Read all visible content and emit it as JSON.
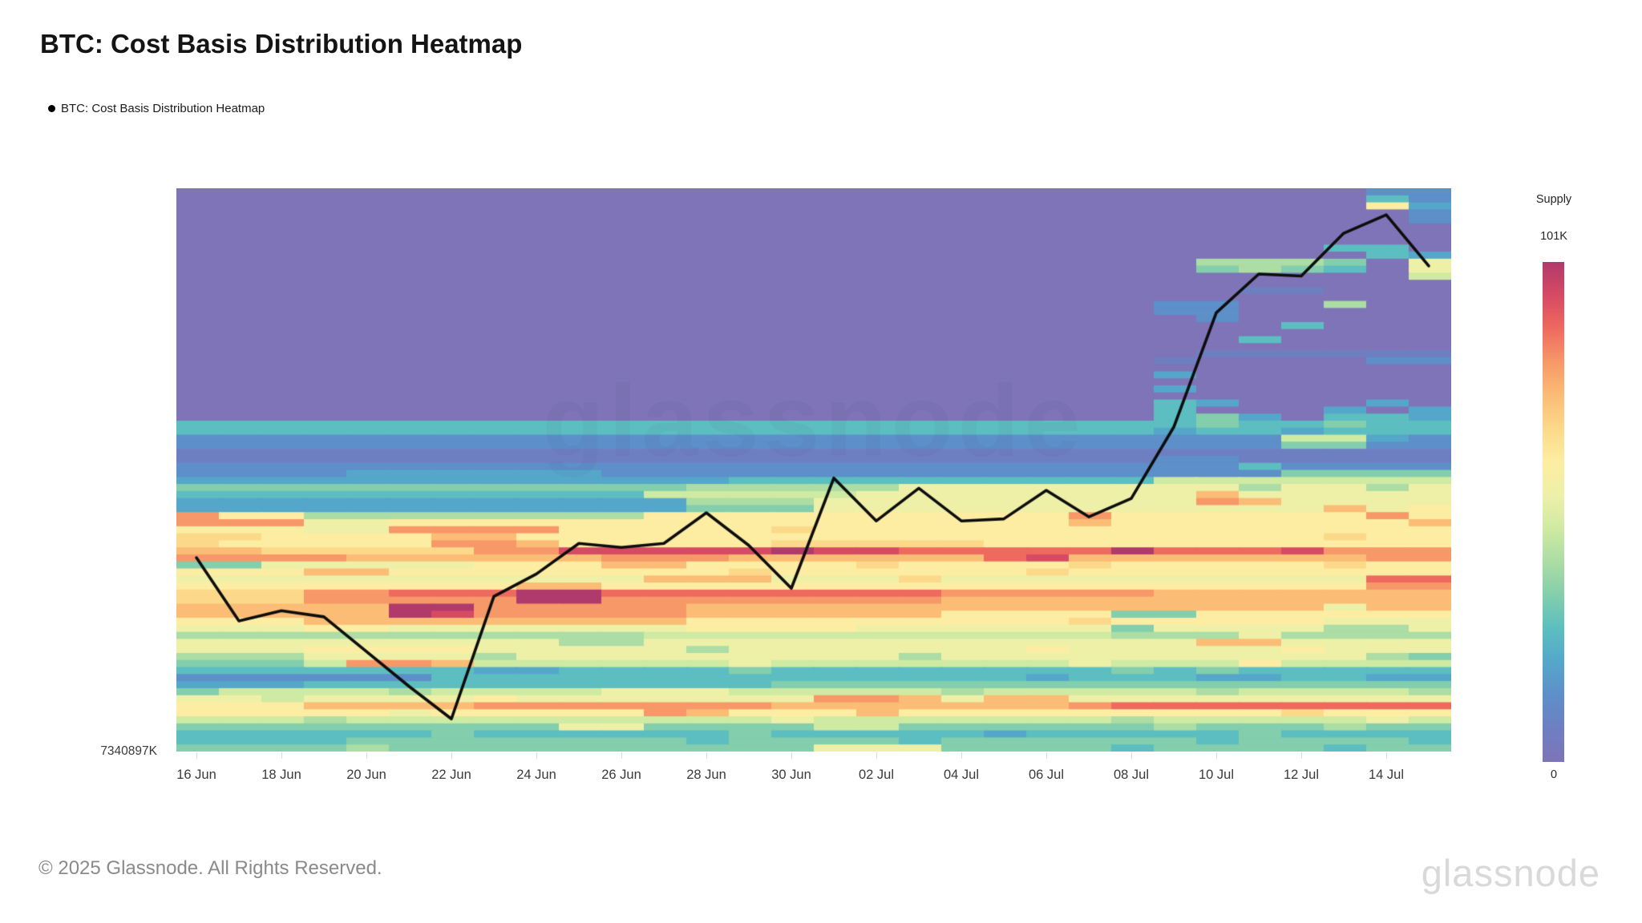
{
  "page": {
    "title": "BTC: Cost Basis Distribution Heatmap",
    "legend": {
      "marker": "●",
      "label": "BTC: Cost Basis Distribution Heatmap"
    },
    "watermark": "glassnode",
    "footer": {
      "copyright": "© 2025 Glassnode. All Rights Reserved.",
      "brand": "glassnode"
    }
  },
  "colors": {
    "background": "#ffffff",
    "title_text": "#141414",
    "axis_text": "#3a3a3a",
    "footer_text": "#8a8a8a",
    "brand_text": "#d9d9d9",
    "price_line": "#0d0d0d",
    "palette": [
      "#7e74b7",
      "#6e7fc1",
      "#5d8fc9",
      "#55a7ca",
      "#5cbec0",
      "#83ceac",
      "#abdda4",
      "#cfeaa2",
      "#eef0a8",
      "#fdeda2",
      "#fcd98a",
      "#fbbc75",
      "#f79868",
      "#ee6a5f",
      "#d64a63",
      "#b03a6b"
    ]
  },
  "axis": {
    "x_ticks": [
      "16 Jun",
      "18 Jun",
      "20 Jun",
      "22 Jun",
      "24 Jun",
      "26 Jun",
      "28 Jun",
      "30 Jun",
      "02 Jul",
      "04 Jul",
      "06 Jul",
      "08 Jul",
      "10 Jul",
      "12 Jul",
      "14 Jul"
    ],
    "y_bottom_label": "7340897K"
  },
  "colorbar": {
    "title": "Supply",
    "max_label": "101K",
    "min_label": "0"
  },
  "chart_data": {
    "type": "heatmap",
    "title": "BTC: Cost Basis Distribution Heatmap",
    "legend_position": "top-left",
    "x_dates": [
      "16 Jun",
      "17 Jun",
      "18 Jun",
      "19 Jun",
      "20 Jun",
      "21 Jun",
      "22 Jun",
      "23 Jun",
      "24 Jun",
      "25 Jun",
      "26 Jun",
      "27 Jun",
      "28 Jun",
      "29 Jun",
      "30 Jun",
      "01 Jul",
      "02 Jul",
      "03 Jul",
      "04 Jul",
      "05 Jul",
      "06 Jul",
      "07 Jul",
      "08 Jul",
      "09 Jul",
      "10 Jul",
      "11 Jul",
      "12 Jul",
      "13 Jul",
      "14 Jul",
      "15 Jul"
    ],
    "supply_scale": {
      "min": 0,
      "max": 101000,
      "max_label": "101K",
      "encoding": "each grid char is a hex digit 0-f mapping linearly to supply 0 → 101K"
    },
    "grid_rows_top_to_bottom": true,
    "grid": [
      "000000000000000000000000000022",
      "000000000000000000000000000042",
      "000000000000000000000000000093",
      "000000000000000000000000000002",
      "000000000000000000000000000002",
      "000000000000000000000000000000",
      "000000000000000000000000000000",
      "000000000000000000000000000000",
      "000000000000000000000000000440",
      "000000000000000000000000000043",
      "000000000000000000000000666508",
      "000000000000000000000000565408",
      "000000000000000000000000000007",
      "000000000000000000000000000000",
      "000000000000000000000000011000",
      "000000000000000000000000000000",
      "000000000000000000000002200600",
      "000000000000000000000002200000",
      "000000000000000000000000200000",
      "000000000000000000000000004000",
      "000000000000000000000000000000",
      "000000000000000000000000040000",
      "000000000000000000000000000000",
      "000000000000000000000000111111",
      "000000000000000000000001000022",
      "000000000000000000000000000000",
      "000000000000000000000003000000",
      "000000000000000000000000000000",
      "000000000000000000000003000000",
      "000000000000000000000000000000",
      "000000000000000000000004300030",
      "000000000000000000000004000303",
      "000000000000000000000004530443",
      "444444444444444444444444544544",
      "444444444444444444444443443444",
      "222222222222222222222222227732",
      "222222222222222222222222225522",
      "111111111111111111111111111111",
      "111111111111111111111112211111",
      "222222222222222222222222242222",
      "222233333322222222222222225555",
      "333333333333344444444447777777",
      "555555555555666668888888868868",
      "444444444447777788888888b88888",
      "333333333333666888888888cb8888",
      "333333333333555888888888888b89",
      "c99666666669999999999c999999c9",
      "ccc889999999999999999b9999999b",
      "99988cccc99999a999999999999999",
      "aa9999bb9999999999999999999a99",
      "a99999ccb99999aaaaa99999999999",
      "bbaaaaacceeeeefeedddddfdddeccc",
      "ccccbbbbbbcccbbbbbbdebbbbbbbcc",
      "5588888999bb9999a9999a99999a99",
      "999bb99999999a999999a999999999",
      "88888888888bbb888a8888888888dd",
      "99999999bb999999999999999999cc",
      "aaaccdddffddddddddcccccbbbbbbb",
      "aaacccccffccccccccbbbbbbbbbbbb",
      "bbbbbffcccccbbbbbbbbbbbbbbb8bb",
      "bbbbbfecccccbbbbbb999955999999",
      "999bbbbbbbbb999999999a99999888",
      "888998888888999988888858888668",
      "666666666667777777777766686666",
      "888888888668888888888888bb8888",
      "888999988888688888889888889888",
      "666888868888888886888888888865",
      "5557ccb7777778777777787779777 ",
      "444444433444454444444454544444",
      "222222444444444444443444334433",
      "333444444444445555555555555555",
      "577776777788877777677777677776",
      "887888898888888ccb8bb888888888",
      "999bbbbcccccccbbbbbbbcdddddddd",
      "99999899999cb999b999999999a999",
      "777677777777778777777767777787",
      "555555555885555775555556555655",
      "444444544444454444434444454444",
      "444455555555455554555555455554",
      "555565555555555888555545555455"
    ],
    "price_line": {
      "name": "BTC price (overlay)",
      "dates": [
        "16 Jun",
        "17 Jun",
        "18 Jun",
        "19 Jun",
        "20 Jun",
        "21 Jun",
        "22 Jun",
        "23 Jun",
        "24 Jun",
        "25 Jun",
        "26 Jun",
        "27 Jun",
        "28 Jun",
        "29 Jun",
        "30 Jun",
        "01 Jul",
        "02 Jul",
        "03 Jul",
        "04 Jul",
        "05 Jul",
        "06 Jul",
        "07 Jul",
        "08 Jul",
        "09 Jul",
        "10 Jul",
        "11 Jul",
        "12 Jul",
        "13 Jul",
        "14 Jul",
        "15 Jul"
      ],
      "values": [
        106200,
        103100,
        103600,
        103300,
        101600,
        99900,
        98300,
        104300,
        105400,
        106900,
        106700,
        106900,
        108400,
        106800,
        104700,
        110100,
        108000,
        109600,
        108000,
        108100,
        109500,
        108200,
        109100,
        112600,
        118200,
        120100,
        120000,
        122100,
        123000,
        120500
      ]
    },
    "price_ylim": [
      96700,
      124300
    ]
  }
}
